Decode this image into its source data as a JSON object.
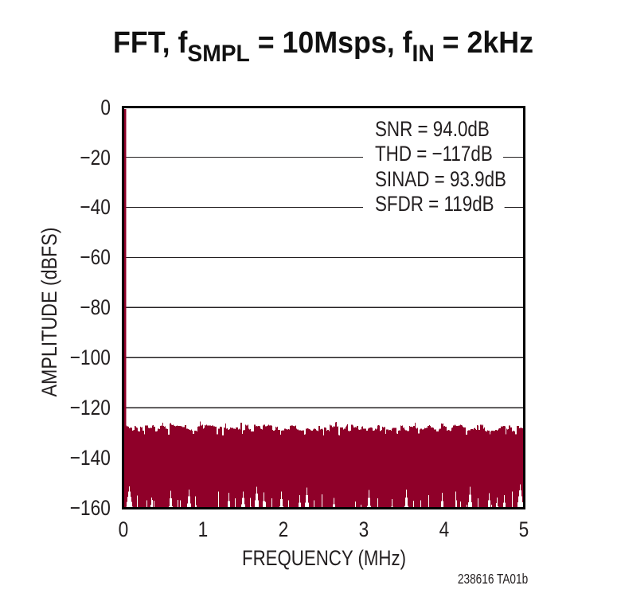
{
  "page": {
    "background": "#FFFFFF"
  },
  "title": {
    "text": "FFT, fSMPL = 10Msps, fIN = 2kHz",
    "parts": [
      {
        "t": "FFT, f"
      },
      {
        "t": "SMPL",
        "sub": true
      },
      {
        "t": " = 10Msps, f"
      },
      {
        "t": "IN",
        "sub": true
      },
      {
        "t": " = 2kHz"
      }
    ]
  },
  "footer": {
    "label": "238616 TA01b"
  },
  "colors": {
    "series": "#8F0029",
    "axis": "#000000",
    "grid": "#231F20",
    "text": "#231F20",
    "background": "#FFFFFF"
  },
  "chart_data": {
    "type": "line",
    "subtype": "fft-spectrum",
    "title": "FFT, fSMPL = 10Msps, fIN = 2kHz",
    "xlabel": "FREQUENCY (MHz)",
    "ylabel": "AMPLITUDE (dBFS)",
    "xlim": [
      0,
      5
    ],
    "ylim": [
      -160,
      0
    ],
    "x_ticks": [
      0,
      1,
      2,
      3,
      4,
      5
    ],
    "x_tick_labels": [
      "0",
      "1",
      "2",
      "3",
      "4",
      "5"
    ],
    "y_ticks": [
      0,
      -20,
      -40,
      -60,
      -80,
      -100,
      -120,
      -140,
      -160
    ],
    "y_tick_labels": [
      "0",
      "−20",
      "−40",
      "−60",
      "−80",
      "−100",
      "−120",
      "−140",
      "−160"
    ],
    "grid": "horizontal",
    "legend": "none",
    "annotations": [
      {
        "text": "SNR = 94.0dB"
      },
      {
        "text": "THD = −117dB"
      },
      {
        "text": "SINAD = 93.9dB"
      },
      {
        "text": "SFDR = 119dB"
      }
    ],
    "signal": {
      "frequency_mhz": 0.002,
      "peak_dbfs": 0
    },
    "noise_band": {
      "description": "FFT noise floor rendered as vertical min/max envelope per frequency column",
      "columns": 501,
      "top_dbfs": [
        -127.3,
        -127.1,
        -127.1,
        -127.4,
        -127.4,
        -127.5,
        -128.2,
        -128.0,
        -127.9,
        -128.0,
        -129.1,
        -129.0,
        -128.8,
        -127.3,
        -127.4,
        -127.9,
        -128.0,
        -129.3,
        -129.4,
        -129.5,
        -127.6,
        -127.8,
        -127.7,
        -129.2,
        -129.1,
        -130.6,
        -127.1,
        -127.0,
        -127.0,
        -127.1,
        -128.1,
        -128.2,
        -128.1,
        -128.0,
        -128.0,
        -127.0,
        -126.9,
        -127.6,
        -127.6,
        -129.4,
        -129.4,
        -129.3,
        -128.3,
        -128.3,
        -128.5,
        -127.2,
        -127.1,
        -127.3,
        -126.0,
        -127.3,
        -127.6,
        -127.4,
        -128.3,
        -128.4,
        -128.5,
        -130.8,
        -130.7,
        -126.2,
        -126.1,
        -126.8,
        -126.9,
        -126.8,
        -127.1,
        -127.3,
        -127.4,
        -127.2,
        -127.1,
        -127.3,
        -127.2,
        -127.2,
        -127.3,
        -127.4,
        -127.4,
        -127.7,
        -127.7,
        -127.7,
        -126.9,
        -126.9,
        -128.3,
        -128.4,
        -128.5,
        -128.7,
        -128.9,
        -129.0,
        -128.7,
        -129.1,
        -130.4,
        -130.4,
        -129.2,
        -129.1,
        -129.2,
        -129.4,
        -127.5,
        -127.4,
        -127.4,
        -125.5,
        -127.1,
        -127.0,
        -126.8,
        -128.3,
        -128.1,
        -126.9,
        -127.0,
        -126.7,
        -127.1,
        -127.1,
        -127.1,
        -127.0,
        -127.0,
        -127.2,
        -127.0,
        -127.0,
        -127.4,
        -127.4,
        -127.6,
        -127.6,
        -130.6,
        -130.6,
        -128.3,
        -128.3,
        -127.6,
        -127.6,
        -127.7,
        -131.1,
        -131.1,
        -127.8,
        -128.0,
        -126.3,
        -128.4,
        -128.2,
        -128.7,
        -128.8,
        -128.5,
        -127.9,
        -128.1,
        -128.0,
        -128.1,
        -128.4,
        -128.4,
        -128.5,
        -127.8,
        -127.8,
        -127.8,
        -128.6,
        -128.4,
        -128.7,
        -125.9,
        -126.0,
        -130.4,
        -129.0,
        -129.0,
        -128.9,
        -126.8,
        -127.0,
        -127.1,
        -126.8,
        -128.4,
        -128.6,
        -128.5,
        -129.4,
        -129.4,
        -129.4,
        -129.5,
        -126.7,
        -126.8,
        -127.4,
        -127.3,
        -127.4,
        -127.3,
        -127.3,
        -127.4,
        -128.4,
        -128.5,
        -128.6,
        -127.0,
        -126.8,
        -126.7,
        -127.4,
        -127.4,
        -127.2,
        -127.1,
        -126.7,
        -127.0,
        -127.0,
        -126.9,
        -127.3,
        -128.9,
        -129.2,
        -129.1,
        -128.9,
        -127.6,
        -127.8,
        -127.6,
        -128.9,
        -128.9,
        -128.8,
        -130.7,
        -129.1,
        -129.2,
        -128.9,
        -129.1,
        -128.4,
        -128.3,
        -128.5,
        -128.6,
        -128.6,
        -128.5,
        -128.7,
        -127.2,
        -127.1,
        -127.1,
        -127.1,
        -127.3,
        -127.4,
        -127.3,
        -127.1,
        -128.4,
        -128.6,
        -128.6,
        -129.0,
        -129.0,
        -129.0,
        -129.2,
        -129.0,
        -129.1,
        -129.0,
        -130.7,
        -130.6,
        -128.4,
        -128.3,
        -128.2,
        -128.3,
        -128.5,
        -128.7,
        -129.0,
        -129.1,
        -129.1,
        -128.6,
        -128.4,
        -128.4,
        -128.5,
        -129.0,
        -129.1,
        -129.3,
        -127.3,
        -127.2,
        -128.6,
        -128.5,
        -128.4,
        -128.6,
        -131.1,
        -127.9,
        -127.9,
        -128.1,
        -129.1,
        -128.9,
        -128.9,
        -129.3,
        -126.8,
        -127.1,
        -127.1,
        -127.7,
        -127.7,
        -127.3,
        -127.5,
        -125.8,
        -125.7,
        -127.6,
        -127.4,
        -130.9,
        -131.1,
        -127.8,
        -127.9,
        -127.8,
        -127.8,
        -128.6,
        -128.3,
        -128.4,
        -127.5,
        -127.1,
        -126.6,
        -129.1,
        -129.4,
        -129.1,
        -129.2,
        -126.8,
        -126.7,
        -127.0,
        -127.8,
        -127.8,
        -127.7,
        -127.9,
        -127.2,
        -127.2,
        -128.6,
        -128.8,
        -128.7,
        -128.6,
        -127.6,
        -127.4,
        -128.4,
        -128.4,
        -128.4,
        -128.3,
        -129.1,
        -129.2,
        -128.3,
        -128.0,
        -128.0,
        -127.8,
        -127.9,
        -128.0,
        -129.1,
        -129.2,
        -129.0,
        -128.3,
        -128.6,
        -128.4,
        -127.0,
        -126.9,
        -127.0,
        -129.3,
        -129.2,
        -128.9,
        -127.6,
        -127.9,
        -127.7,
        -127.7,
        -130.4,
        -128.7,
        -128.6,
        -128.6,
        -129.0,
        -128.8,
        -128.9,
        -129.1,
        -128.3,
        -128.1,
        -128.0,
        -128.0,
        -128.0,
        -128.0,
        -130.3,
        -130.4,
        -129.2,
        -129.0,
        -129.1,
        -127.1,
        -127.2,
        -127.1,
        -128.0,
        -127.8,
        -128.7,
        -129.0,
        -129.0,
        -129.1,
        -129.4,
        -129.1,
        -127.3,
        -127.5,
        -127.6,
        -127.5,
        -127.7,
        -127.2,
        -127.2,
        -125.9,
        -128.0,
        -128.3,
        -128.1,
        -130.2,
        -130.2,
        -128.6,
        -128.4,
        -128.3,
        -128.6,
        -128.7,
        -128.5,
        -128.0,
        -128.2,
        -128.0,
        -128.0,
        -127.3,
        -127.2,
        -126.9,
        -127.2,
        -127.9,
        -127.9,
        -127.8,
        -128.0,
        -128.6,
        -128.6,
        -128.6,
        -129.4,
        -129.5,
        -129.5,
        -128.6,
        -128.4,
        -128.4,
        -126.3,
        -126.5,
        -126.3,
        -127.4,
        -127.2,
        -127.5,
        -127.5,
        -129.1,
        -129.0,
        -128.9,
        -129.0,
        -129.3,
        -129.2,
        -128.1,
        -127.9,
        -127.0,
        -127.0,
        -126.8,
        -127.0,
        -127.2,
        -127.2,
        -127.2,
        -127.1,
        -127.0,
        -126.7,
        -126.9,
        -127.0,
        -127.6,
        -127.9,
        -127.9,
        -127.8,
        -130.8,
        -130.7,
        -129.2,
        -129.0,
        -129.0,
        -129.0,
        -128.5,
        -128.5,
        -128.5,
        -128.7,
        -128.2,
        -128.0,
        -128.5,
        -128.8,
        -126.9,
        -127.0,
        -128.8,
        -128.8,
        -126.8,
        -126.8,
        -127.0,
        -126.8,
        -128.3,
        -127.9,
        -129.2,
        -129.4,
        -129.4,
        -129.0,
        -129.1,
        -129.2,
        -130.6,
        -129.5,
        -129.2,
        -129.2,
        -129.1,
        -129.3,
        -129.2,
        -128.9,
        -128.9,
        -129.1,
        -128.8,
        -128.4,
        -128.2,
        -128.2,
        -127.4,
        -127.5,
        -127.4,
        -127.3,
        -127.3,
        -127.4,
        -130.6,
        -128.4,
        -128.7,
        -128.5,
        -127.1,
        -127.0,
        -127.9,
        -127.8,
        -129.4,
        -129.3,
        -129.1,
        -129.4,
        -130.6,
        -130.6,
        -127.2,
        -127.2,
        -127.2,
        -128.2,
        -128.0,
        -128.1,
        -128.0,
        -128.2
      ],
      "bottom_dbfs": [
        -163.0,
        -161.6,
        -159.5,
        -157.5,
        -155.5,
        -153.4,
        -151.4,
        -153.4,
        -155.5,
        -157.5,
        -159.5,
        -161.6,
        -163.0,
        -163.0,
        -163.0,
        -163.0,
        -155,
        -163.0,
        -163.0,
        -163.0,
        -163.0,
        -163.0,
        -163.0,
        -163.0,
        -163.0,
        -163.0,
        -163.0,
        -163.0,
        -156.9,
        -160.4,
        -163.0,
        -163.0,
        -163.0,
        -158.7,
        -155.9,
        -156.8,
        -160.3,
        -157.1,
        -160.6,
        -163.0,
        -163.0,
        -163.0,
        -163.0,
        -163.0,
        -163.0,
        -163.0,
        -163.0,
        -163.0,
        -163.0,
        -163.0,
        -163.0,
        -163.0,
        -163.0,
        -163.0,
        -163.0,
        -162.4,
        -159.3,
        -156.2,
        -153.2,
        -156.2,
        -159.3,
        -162.4,
        -163.0,
        -163.0,
        -163.0,
        -163.0,
        -163.0,
        -156.8,
        -160.3,
        -163.0,
        -157.0,
        -163.0,
        -163.0,
        -163.0,
        -163.0,
        -163.0,
        -163.0,
        -163.0,
        -161.0,
        -158.2,
        -155.4,
        -152.6,
        -155.4,
        -158.2,
        -161.0,
        -163.0,
        -163.0,
        -163.0,
        -163.0,
        -155.3,
        -158.8,
        -163.0,
        -163.0,
        -163.0,
        -163.0,
        -163.0,
        -163.0,
        -163.0,
        -163.0,
        -163.0,
        -163.0,
        -163.0,
        -163.0,
        -163.0,
        -163.0,
        -163.0,
        -163.0,
        -163.0,
        -163.0,
        -163.0,
        -163.0,
        -163.0,
        -163.0,
        -163.0,
        -163.0,
        -163.0,
        -163.0,
        -163.0,
        -153.5,
        -163.0,
        -163.0,
        -163.0,
        -163.0,
        -163.0,
        -163.0,
        -163.0,
        -163.0,
        -163.0,
        -163.0,
        -160.6,
        -157.2,
        -153.9,
        -157.2,
        -160.6,
        -163.0,
        -163.0,
        -163.0,
        -163.0,
        -163.0,
        -156.1,
        -159.6,
        -163.0,
        -163.0,
        -163.0,
        -163.0,
        -163.0,
        -161.2,
        -158.6,
        -156.0,
        -153.4,
        -156.0,
        -158.6,
        -161.2,
        -163.0,
        -163.0,
        -163.0,
        -163.0,
        -163.0,
        -156.0,
        -159.5,
        -163.0,
        -163.0,
        -162.5,
        -159.7,
        -157.0,
        -154.2,
        -151.5,
        -154.2,
        -157.0,
        -159.7,
        -162.5,
        -163.0,
        -163.0,
        -160.6,
        -157.2,
        -153.8,
        -157.2,
        -157.5,
        -161.0,
        -163.0,
        -163.0,
        -163.0,
        -163.0,
        -163.0,
        -163.0,
        -156.2,
        -163.0,
        -163.0,
        -163.0,
        -163.0,
        -163.0,
        -163.0,
        -163.0,
        -163.0,
        -162.4,
        -159.4,
        -156.5,
        -153.5,
        -156.5,
        -159.4,
        -162.4,
        -163.0,
        -163.0,
        -163.0,
        -163.0,
        -163.0,
        -157.0,
        -163.0,
        -163.0,
        -163.0,
        -163.0,
        -163.0,
        -163.0,
        -163.0,
        -163.0,
        -163.0,
        -163.0,
        -163.0,
        -160.9,
        -157.9,
        -154.9,
        -157.9,
        -160.9,
        -163.0,
        -163.0,
        -163.0,
        -160.9,
        -157.9,
        -154.8,
        -151.8,
        -154.8,
        -157.9,
        -160.9,
        -163.0,
        -163.0,
        -163.0,
        -163.0,
        -163.0,
        -157.0,
        -163.0,
        -163.0,
        -163.0,
        -163.0,
        -163.0,
        -163.0,
        -163.0,
        -163.0,
        -163.0,
        -154.6,
        -163.0,
        -163.0,
        -163.0,
        -163.0,
        -163.0,
        -163.0,
        -163.0,
        -163.0,
        -163.0,
        -163.0,
        -163.0,
        -163.0,
        -161.2,
        -158.6,
        -156.0,
        -158.6,
        -161.2,
        -163.0,
        -163.0,
        -163.0,
        -163.0,
        -163.0,
        -163.0,
        -163.0,
        -163.0,
        -163.0,
        -163.0,
        -163.0,
        -163.0,
        -163.0,
        -163.0,
        -163.0,
        -163.0,
        -163.0,
        -163.0,
        -163.0,
        -163.0,
        -163.0,
        -163.0,
        -163.0,
        -163.0,
        -157.4,
        -160.9,
        -163.0,
        -163.0,
        -163.0,
        -163.0,
        -163.0,
        -158.7,
        -163.0,
        -163.0,
        -163.0,
        -163.0,
        -163.0,
        -163.0,
        -162.4,
        -159.2,
        -156.0,
        -152.8,
        -156.0,
        -159.2,
        -162.4,
        -163.0,
        -163.0,
        -163.0,
        -163.0,
        -163.0,
        -163.0,
        -163.0,
        -156.2,
        -159.7,
        -163.0,
        -163.0,
        -163.0,
        -163.0,
        -163.0,
        -163.0,
        -163.0,
        -163.0,
        -163.0,
        -163.0,
        -163.0,
        -163.0,
        -163.0,
        -163.0,
        -162.4,
        -159.5,
        -156.5,
        -159.5,
        -162.4,
        -163.0,
        -163.0,
        -163.0,
        -163.0,
        -163.0,
        -163.0,
        -163.0,
        -163.0,
        -163.0,
        -163.0,
        -163.0,
        -163.0,
        -162.4,
        -159.1,
        -155.9,
        -152.6,
        -155.9,
        -159.1,
        -162.4,
        -163.0,
        -163.0,
        -163.0,
        -163.0,
        -163.0,
        -157.1,
        -160.6,
        -163.0,
        -163.0,
        -163.0,
        -163.0,
        -163.0,
        -163.0,
        -163.0,
        -157.0,
        -163.0,
        -163.0,
        -163.0,
        -163.0,
        -163.0,
        -163.0,
        -163.0,
        -163.0,
        -163.0,
        -154.9,
        -163.0,
        -163.0,
        -163.0,
        -163.0,
        -163.0,
        -163.0,
        -163.0,
        -163.0,
        -163.0,
        -163.0,
        -163.0,
        -163.0,
        -163.0,
        -163.0,
        -160.6,
        -157.3,
        -153.9,
        -157.3,
        -160.6,
        -163.0,
        -163.0,
        -163.0,
        -163.0,
        -163.0,
        -163.0,
        -163.0,
        -163.0,
        -163.0,
        -163.0,
        -163.0,
        -163.0,
        -163.0,
        -163.0,
        -153.4,
        -156.9,
        -163.0,
        -163.0,
        -163.0,
        -163.0,
        -157.4,
        -163.0,
        -163.0,
        -163.0,
        -163.0,
        -163.0,
        -163.0,
        -163.0,
        -158.7,
        -160.8,
        -157.8,
        -154.7,
        -151.6,
        -154.7,
        -157.8,
        -160.8,
        -163.0,
        -163.0,
        -163.0,
        -163.0,
        -163.0,
        -163.0,
        -156.2,
        -163.0,
        -163.0,
        -163.0,
        -163.0,
        -163.0,
        -163.0,
        -163.0,
        -163.0,
        -163.0,
        -163.0,
        -162.4,
        -159.7,
        -156.9,
        -154.1,
        -156.9,
        -159.7,
        -158.7,
        -162.2,
        -163.0,
        -163.0,
        -163.0,
        -163.0,
        -158.1,
        -155.8,
        -159.3,
        -163.0,
        -163.0,
        -163.0,
        -163.0,
        -163.0,
        -160.9,
        -157.9,
        -154.8,
        -157.9,
        -160.9,
        -163.0,
        -163.0,
        -163.0,
        -163.0,
        -163.0,
        -163.0,
        -163.0,
        -153.5,
        -163.0,
        -163.0,
        -163.0,
        -163.0,
        -162.5,
        -160.1,
        -157.8,
        -155.4,
        -153.0,
        -150.6,
        -153.0,
        -155.4,
        -157.8
      ]
    }
  }
}
